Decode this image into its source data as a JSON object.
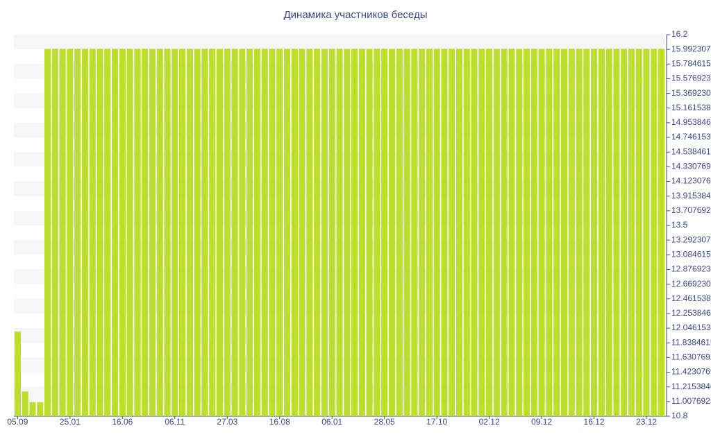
{
  "chart_data": {
    "type": "bar",
    "title": "Динамика участников беседы",
    "categories": [
      "05.09",
      null,
      null,
      null,
      null,
      null,
      null,
      "25.01",
      null,
      null,
      null,
      null,
      null,
      null,
      "16.06",
      null,
      null,
      null,
      null,
      null,
      null,
      "06.11",
      null,
      null,
      null,
      null,
      null,
      null,
      "27.03",
      null,
      null,
      null,
      null,
      null,
      null,
      "16.08",
      null,
      null,
      null,
      null,
      null,
      null,
      "06.01",
      null,
      null,
      null,
      null,
      null,
      null,
      "28.05",
      null,
      null,
      null,
      null,
      null,
      null,
      "17.10",
      null,
      null,
      null,
      null,
      null,
      null,
      "02.12",
      null,
      null,
      null,
      null,
      null,
      null,
      "09.12",
      null,
      null,
      null,
      null,
      null,
      null,
      "16.12",
      null,
      null,
      null,
      null,
      null,
      null,
      "23.12",
      null,
      null
    ],
    "values": [
      12,
      11.15,
      11,
      11,
      16,
      16,
      16,
      16,
      16,
      16,
      16,
      16,
      16,
      16,
      16,
      16,
      16,
      16,
      16,
      16,
      16,
      16,
      16,
      16,
      16,
      16,
      16,
      16,
      16,
      16,
      16,
      16,
      16,
      16,
      16,
      16,
      16,
      16,
      16,
      16,
      16,
      16,
      16,
      16,
      16,
      16,
      16,
      16,
      16,
      16,
      16,
      16,
      16,
      16,
      16,
      16,
      16,
      16,
      16,
      16,
      16,
      16,
      16,
      16,
      16,
      16,
      16,
      16,
      16,
      16,
      16,
      16,
      16,
      16,
      16,
      16,
      16,
      16,
      16,
      16,
      16,
      16,
      16,
      16,
      16,
      16,
      16
    ],
    "color": "#bede2f",
    "ylim": [
      10.8,
      16.2
    ],
    "yticks": [
      16.2,
      15.992307692307692,
      15.784615384615385,
      15.576923076923077,
      15.36923076923077,
      15.161538461538461,
      14.953846153846154,
      14.746153846153845,
      14.538461538461538,
      14.330769230769231,
      14.123076923076923,
      13.915384615384616,
      13.707692307692307,
      13.5,
      13.292307692307693,
      13.084615384615384,
      12.876923076923077,
      12.669230769230769,
      12.461538461538462,
      12.253846153846153,
      12.046153846153846,
      11.838461538461537,
      11.63076923076923,
      11.423076923076923,
      11.215384615384615,
      11.007692307692308,
      10.8
    ],
    "grid": true
  }
}
